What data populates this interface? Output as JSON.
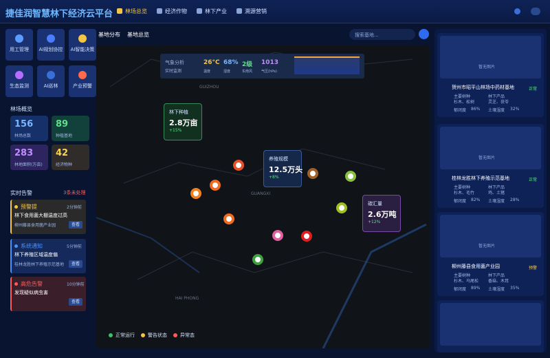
{
  "header": {
    "title": "捷佳润智慧林下经济云平台",
    "nav": [
      "林场总览",
      "经济作物",
      "林下产业",
      "溯源营销"
    ]
  },
  "tools": [
    "用工管理",
    "AI规划协控",
    "AI智能决策",
    "生态监测",
    "AI巡林",
    "产业预警"
  ],
  "overview": {
    "title": "林场概览",
    "stats": [
      {
        "value": "156",
        "label": "林场总数"
      },
      {
        "value": "89",
        "label": "种植基地"
      },
      {
        "value": "283",
        "label": "林地面积(万亩)"
      },
      {
        "value": "42",
        "label": "经济物种"
      }
    ]
  },
  "alerts": {
    "title": "实时告警",
    "count": "3条未处理",
    "items": [
      {
        "type": "预警提",
        "time": "2分钟前",
        "text": "林下食用菌大棚温度过高",
        "place": "柳州藤县食用菌产业园",
        "action": "查看"
      },
      {
        "type": "系统通知",
        "time": "5分钟前",
        "text": "林下养殖区域温度偏",
        "place": "桂林龙胜林下养殖示范基地",
        "action": "查看"
      },
      {
        "type": "高危告警",
        "time": "10分钟前",
        "text": "发现疑似病虫害",
        "action": "查看"
      }
    ]
  },
  "map": {
    "tabs": [
      "基地分布",
      "基地总览"
    ],
    "search": "搜索基地...",
    "weather": {
      "title": "气象分析",
      "subtitle": "实时监测",
      "items": [
        {
          "value": "26°C",
          "label": "温度"
        },
        {
          "value": "68%",
          "label": "湿度"
        },
        {
          "value": "2级",
          "label": "东南风"
        },
        {
          "value": "1013",
          "label": "气压(hPa)"
        }
      ]
    },
    "cards": [
      {
        "label": "林下种植",
        "value": "2.8万亩",
        "change": "+15%"
      },
      {
        "label": "养殖规模",
        "value": "12.5万头",
        "change": "+8%"
      },
      {
        "label": "碳汇量",
        "value": "2.6万吨",
        "change": "+12%"
      }
    ],
    "places": [
      "GUIZHOU",
      "GUANGXI",
      "HAI PHONG"
    ],
    "legend": [
      "正常运行",
      "警告状态",
      "异常态"
    ]
  },
  "bases": {
    "no_image": "暂无图片",
    "items": [
      {
        "name": "贺州市昭平山林场中药材基地",
        "status": "正常",
        "species_label": "主要树种",
        "species": "杉木、松树",
        "products_label": "林下产品",
        "products": "灵芝、茯苓",
        "canopy_label": "郁闭度",
        "canopy": "86%",
        "soil_label": "土壤湿度",
        "soil": "32%"
      },
      {
        "name": "桂林龙胜林下养殖示范基地",
        "status": "正常",
        "species_label": "主要树种",
        "species": "杉木、毛竹",
        "products_label": "林下产品",
        "products": "鸡、土猪",
        "canopy_label": "郁闭度",
        "canopy": "82%",
        "soil_label": "土壤湿度",
        "soil": "28%"
      },
      {
        "name": "柳州藤县食用菌产业园",
        "status": "预警",
        "species_label": "主要树种",
        "species": "杉木、马尾松",
        "products_label": "林下产品",
        "products": "香菇、木耳",
        "canopy_label": "郁闭度",
        "canopy": "89%",
        "soil_label": "土壤湿度",
        "soil": "35%"
      }
    ]
  }
}
